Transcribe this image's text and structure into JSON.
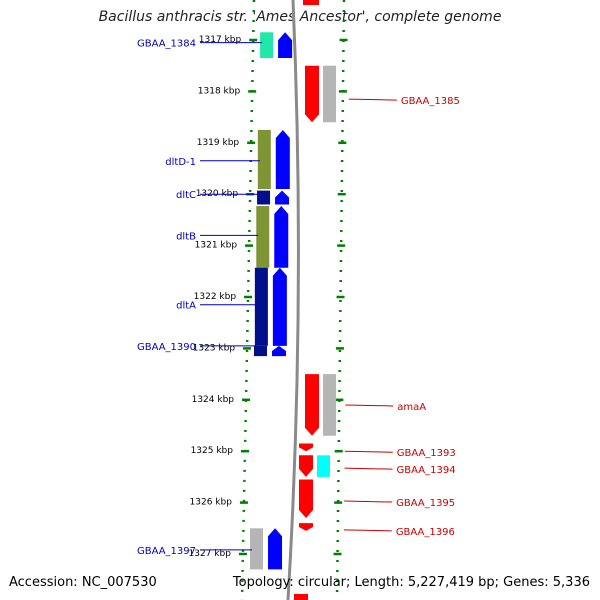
{
  "title": "Bacillus anthracis str. 'Ames Ancestor', complete genome",
  "footer": {
    "accession": "Accession: NC_007530",
    "summary": "Topology: circular; Length: 5,227,419 bp; Genes: 5,336"
  },
  "colors": {
    "forward_cds": "#0000ff",
    "reverse_cds": "#ff0000",
    "gene_olive": "#7f9535",
    "gene_navy": "#000f8a",
    "gene_gray": "#b5b5b5",
    "gene_teal": "#20e8a8",
    "gene_cyan": "#00ffff",
    "tick": "#008000",
    "label_forward": "#0000c0",
    "label_reverse": "#cc0000"
  },
  "chart_data": {
    "type": "genome-map",
    "range_kbp": [
      1316.8,
      1327.2
    ],
    "ticks_kbp": [
      1317,
      1318,
      1319,
      1320,
      1321,
      1322,
      1323,
      1324,
      1325,
      1326,
      1327
    ],
    "tick_labels": [
      "1317 kbp",
      "1318 kbp",
      "1319 kbp",
      "1320 kbp",
      "1321 kbp",
      "1322 kbp",
      "1323 kbp",
      "1324 kbp",
      "1325 kbp",
      "1326 kbp",
      "1327 kbp"
    ],
    "forward_genes": [
      {
        "name": "GBAA_1384",
        "start": 1316.85,
        "end": 1317.35,
        "label_at": 1317.05,
        "color": "teal"
      },
      {
        "name": "dltD-1",
        "start": 1318.75,
        "end": 1319.9,
        "label_at": 1319.35,
        "color": "olive"
      },
      {
        "name": "dltC",
        "start": 1319.93,
        "end": 1320.2,
        "label_at": 1320.0,
        "color": "navy"
      },
      {
        "name": "dltB",
        "start": 1320.23,
        "end": 1321.43,
        "label_at": 1320.8,
        "color": "olive"
      },
      {
        "name": "dltA",
        "start": 1321.43,
        "end": 1322.95,
        "label_at": 1322.15,
        "color": "navy"
      },
      {
        "name": "GBAA_1390",
        "start": 1322.95,
        "end": 1323.15,
        "label_at": 1322.95,
        "color": "navy"
      },
      {
        "name": "GBAA_1397",
        "start": 1326.5,
        "end": 1327.3,
        "label_at": 1326.92,
        "color": "gray"
      }
    ],
    "reverse_genes": [
      {
        "name": "GBAA_1385",
        "start": 1317.5,
        "end": 1318.6,
        "label_at": 1318.15,
        "color": "gray"
      },
      {
        "name": "amaA",
        "start": 1323.5,
        "end": 1324.7,
        "label_at": 1324.1,
        "color": "gray"
      },
      {
        "name": "GBAA_1393",
        "start": 1324.85,
        "end": 1325.0,
        "label_at": 1325.0,
        "color": "red"
      },
      {
        "name": "GBAA_1394",
        "start": 1325.08,
        "end": 1325.5,
        "label_at": 1325.33,
        "color": "cyan"
      },
      {
        "name": "GBAA_1395",
        "start": 1325.55,
        "end": 1326.3,
        "label_at": 1325.97,
        "color": "red"
      },
      {
        "name": "GBAA_1396",
        "start": 1326.4,
        "end": 1326.55,
        "label_at": 1326.53,
        "color": "red"
      }
    ]
  }
}
